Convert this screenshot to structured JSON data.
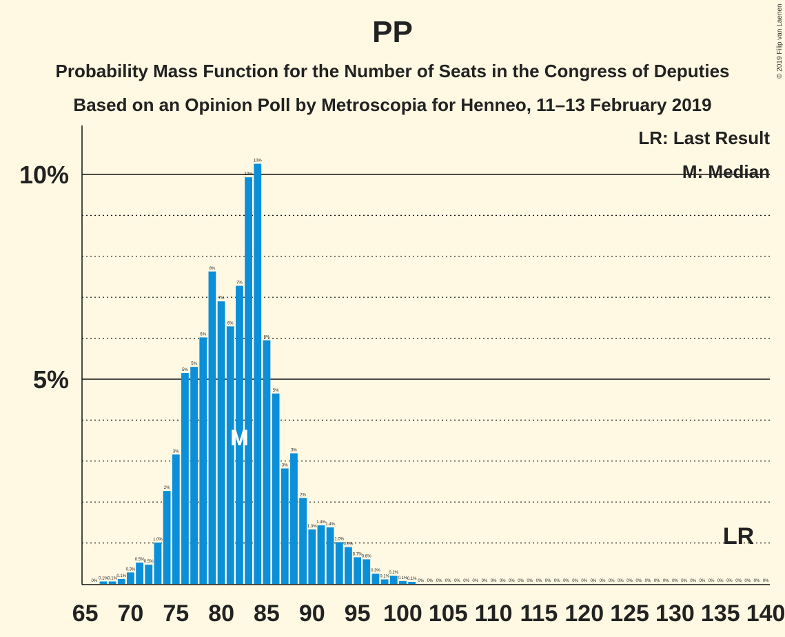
{
  "copyright": "© 2019 Filip van Laenen",
  "chart_data": {
    "type": "bar",
    "title": "PP",
    "subtitle": "Probability Mass Function for the Number of Seats in the Congress of Deputies",
    "subtitle2": "Based on an Opinion Poll by Metroscopia for Henneo, 11–13 February 2019",
    "xlabel": "",
    "ylabel": "",
    "xlim": [
      65,
      140
    ],
    "ylim": [
      0,
      11
    ],
    "x_ticks": [
      65,
      70,
      75,
      80,
      85,
      90,
      95,
      100,
      105,
      110,
      115,
      120,
      125,
      130,
      135,
      140
    ],
    "y_ticks": [
      {
        "value": 5,
        "label": "5%"
      },
      {
        "value": 10,
        "label": "10%"
      }
    ],
    "legend": {
      "last_result": "LR: Last Result",
      "median": "M: Median"
    },
    "median": {
      "seat": 82,
      "marker": "M"
    },
    "last_result": {
      "seat": 137,
      "marker": "LR"
    },
    "bar_color": "#0A8FD8",
    "grid": "dotted at every 1%",
    "points": [
      {
        "x": 66,
        "y": 0.0,
        "label": "0%"
      },
      {
        "x": 67,
        "y": 0.06,
        "label": "0.1%"
      },
      {
        "x": 68,
        "y": 0.06,
        "label": "0.1%"
      },
      {
        "x": 69,
        "y": 0.12,
        "label": "0.1%"
      },
      {
        "x": 70,
        "y": 0.28,
        "label": "0.3%"
      },
      {
        "x": 71,
        "y": 0.52,
        "label": "0.5%"
      },
      {
        "x": 72,
        "y": 0.47,
        "label": "0.5%"
      },
      {
        "x": 73,
        "y": 1.01,
        "label": "1.0%"
      },
      {
        "x": 74,
        "y": 2.27,
        "label": "2%"
      },
      {
        "x": 75,
        "y": 3.16,
        "label": "3%"
      },
      {
        "x": 76,
        "y": 5.15,
        "label": "5%"
      },
      {
        "x": 77,
        "y": 5.3,
        "label": "5%"
      },
      {
        "x": 78,
        "y": 6.02,
        "label": "6%"
      },
      {
        "x": 79,
        "y": 7.63,
        "label": "8%"
      },
      {
        "x": 80,
        "y": 6.9,
        "label": "7%"
      },
      {
        "x": 81,
        "y": 6.29,
        "label": "6%"
      },
      {
        "x": 82,
        "y": 7.28,
        "label": "7%"
      },
      {
        "x": 83,
        "y": 9.93,
        "label": "10%"
      },
      {
        "x": 84,
        "y": 10.26,
        "label": "10%"
      },
      {
        "x": 85,
        "y": 5.95,
        "label": "6%"
      },
      {
        "x": 86,
        "y": 4.65,
        "label": "5%"
      },
      {
        "x": 87,
        "y": 2.82,
        "label": "3%"
      },
      {
        "x": 88,
        "y": 3.19,
        "label": "3%"
      },
      {
        "x": 89,
        "y": 2.1,
        "label": "2%"
      },
      {
        "x": 90,
        "y": 1.33,
        "label": "1.3%"
      },
      {
        "x": 91,
        "y": 1.43,
        "label": "1.4%"
      },
      {
        "x": 92,
        "y": 1.38,
        "label": "1.4%"
      },
      {
        "x": 93,
        "y": 1.02,
        "label": "1.0%"
      },
      {
        "x": 94,
        "y": 0.9,
        "label": "0.9%"
      },
      {
        "x": 95,
        "y": 0.65,
        "label": "0.7%"
      },
      {
        "x": 96,
        "y": 0.6,
        "label": "0.6%"
      },
      {
        "x": 97,
        "y": 0.25,
        "label": "0.3%"
      },
      {
        "x": 98,
        "y": 0.11,
        "label": "0.1%"
      },
      {
        "x": 99,
        "y": 0.2,
        "label": "0.2%"
      },
      {
        "x": 100,
        "y": 0.07,
        "label": "0.1%"
      },
      {
        "x": 101,
        "y": 0.05,
        "label": "0.1%"
      },
      {
        "x": 102,
        "y": 0.0,
        "label": "0%"
      },
      {
        "x": 103,
        "y": 0.0,
        "label": "0%"
      },
      {
        "x": 104,
        "y": 0.0,
        "label": "0%"
      },
      {
        "x": 105,
        "y": 0.0,
        "label": "0%"
      },
      {
        "x": 106,
        "y": 0.0,
        "label": "0%"
      },
      {
        "x": 107,
        "y": 0.0,
        "label": "0%"
      },
      {
        "x": 108,
        "y": 0.0,
        "label": "0%"
      },
      {
        "x": 109,
        "y": 0.0,
        "label": "0%"
      },
      {
        "x": 110,
        "y": 0.0,
        "label": "0%"
      },
      {
        "x": 111,
        "y": 0.0,
        "label": "0%"
      },
      {
        "x": 112,
        "y": 0.0,
        "label": "0%"
      },
      {
        "x": 113,
        "y": 0.0,
        "label": "0%"
      },
      {
        "x": 114,
        "y": 0.0,
        "label": "0%"
      },
      {
        "x": 115,
        "y": 0.0,
        "label": "0%"
      },
      {
        "x": 116,
        "y": 0.0,
        "label": "0%"
      },
      {
        "x": 117,
        "y": 0.0,
        "label": "0%"
      },
      {
        "x": 118,
        "y": 0.0,
        "label": "0%"
      },
      {
        "x": 119,
        "y": 0.0,
        "label": "0%"
      },
      {
        "x": 120,
        "y": 0.0,
        "label": "0%"
      },
      {
        "x": 121,
        "y": 0.0,
        "label": "0%"
      },
      {
        "x": 122,
        "y": 0.0,
        "label": "0%"
      },
      {
        "x": 123,
        "y": 0.0,
        "label": "0%"
      },
      {
        "x": 124,
        "y": 0.0,
        "label": "0%"
      },
      {
        "x": 125,
        "y": 0.0,
        "label": "0%"
      },
      {
        "x": 126,
        "y": 0.0,
        "label": "0%"
      },
      {
        "x": 127,
        "y": 0.0,
        "label": "0%"
      },
      {
        "x": 128,
        "y": 0.0,
        "label": "0%"
      },
      {
        "x": 129,
        "y": 0.0,
        "label": "0%"
      },
      {
        "x": 130,
        "y": 0.0,
        "label": "0%"
      },
      {
        "x": 131,
        "y": 0.0,
        "label": "0%"
      },
      {
        "x": 132,
        "y": 0.0,
        "label": "0%"
      },
      {
        "x": 133,
        "y": 0.0,
        "label": "0%"
      },
      {
        "x": 134,
        "y": 0.0,
        "label": "0%"
      },
      {
        "x": 135,
        "y": 0.0,
        "label": "0%"
      },
      {
        "x": 136,
        "y": 0.0,
        "label": "0%"
      },
      {
        "x": 137,
        "y": 0.0,
        "label": "0%"
      },
      {
        "x": 138,
        "y": 0.0,
        "label": "0%"
      },
      {
        "x": 139,
        "y": 0.0,
        "label": "0%"
      },
      {
        "x": 140,
        "y": 0.0,
        "label": "0%"
      }
    ]
  }
}
